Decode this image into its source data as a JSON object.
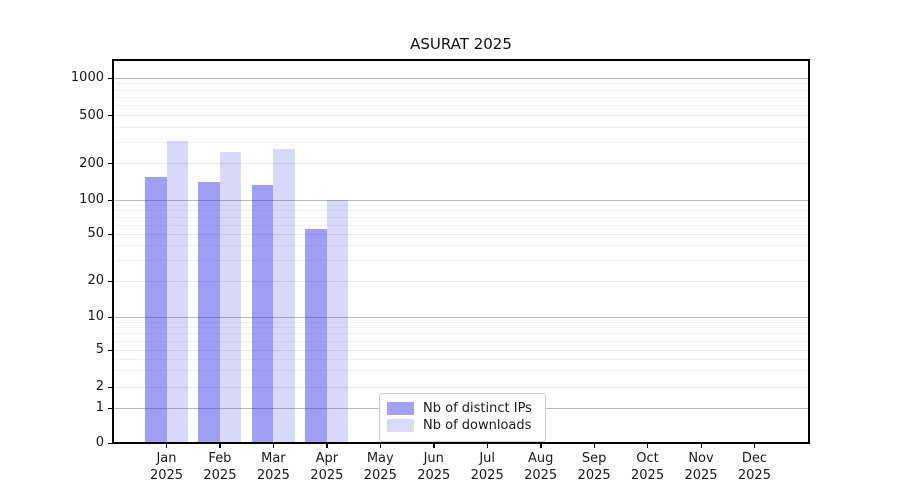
{
  "figure_title": "ASURAT 2025",
  "chart_data": {
    "type": "bar",
    "title": "ASURAT 2025",
    "categories": [
      "Jan 2025",
      "Feb 2025",
      "Mar 2025",
      "Apr 2025",
      "May 2025",
      "Jun 2025",
      "Jul 2025",
      "Aug 2025",
      "Sep 2025",
      "Oct 2025",
      "Nov 2025",
      "Dec 2025"
    ],
    "months": [
      "Jan",
      "Feb",
      "Mar",
      "Apr",
      "May",
      "Jun",
      "Jul",
      "Aug",
      "Sep",
      "Oct",
      "Nov",
      "Dec"
    ],
    "year": "2025",
    "series": [
      {
        "name": "Nb of distinct IPs",
        "swatch_color": "#a2a2f3",
        "fill": "rgba(40,40,230,0.45)",
        "values": [
          155,
          140,
          133,
          55,
          null,
          null,
          null,
          null,
          null,
          null,
          null,
          null
        ]
      },
      {
        "name": "Nb of downloads",
        "swatch_color": "#d9d9fa",
        "fill": "rgba(40,40,230,0.18)",
        "values": [
          310,
          250,
          265,
          100,
          null,
          null,
          null,
          null,
          null,
          null,
          null,
          null
        ]
      }
    ],
    "y_axis": {
      "scale": "symlog",
      "ticks": [
        0,
        1,
        2,
        5,
        10,
        20,
        50,
        100,
        200,
        500,
        1000
      ],
      "decade_ticks": [
        1,
        10,
        100,
        1000
      ],
      "minor_gridlines": [
        3,
        4,
        6,
        7,
        8,
        9,
        30,
        40,
        60,
        70,
        80,
        90,
        300,
        400,
        600,
        700,
        800,
        900
      ]
    },
    "legend": {
      "entries": [
        "Nb of distinct IPs",
        "Nb of downloads"
      ],
      "position": "lower center"
    },
    "grid": true
  },
  "colors": {
    "background": "#ffffff",
    "spine": "#000000",
    "text": "#1a1a1a",
    "decade_gridline": "#bbbbbb",
    "tick_gridline": "#e9e9e9",
    "minor_gridline": "#f2f2f2",
    "legend_border": "#cccccc"
  }
}
